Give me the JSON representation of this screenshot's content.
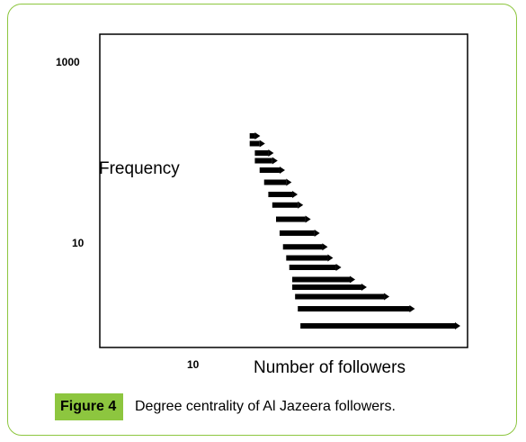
{
  "chart_data": {
    "type": "scatter",
    "xlabel": "Number of followers",
    "ylabel": "Frequency",
    "log_x": true,
    "log_y": true,
    "y_ticks": [
      "1000",
      "10"
    ],
    "x_ticks": [
      "10"
    ],
    "marker_color": "#000000",
    "rows": [
      {
        "y": 180,
        "x_from": 13,
        "x_to": 14
      },
      {
        "y": 150,
        "x_from": 13,
        "x_to": 15
      },
      {
        "y": 120,
        "x_from": 14,
        "x_to": 17
      },
      {
        "y": 100,
        "x_from": 14,
        "x_to": 18
      },
      {
        "y": 80,
        "x_from": 15,
        "x_to": 20
      },
      {
        "y": 60,
        "x_from": 16,
        "x_to": 22
      },
      {
        "y": 45,
        "x_from": 17,
        "x_to": 24
      },
      {
        "y": 35,
        "x_from": 18,
        "x_to": 26
      },
      {
        "y": 25,
        "x_from": 19,
        "x_to": 29
      },
      {
        "y": 18,
        "x_from": 20,
        "x_to": 33
      },
      {
        "y": 13,
        "x_from": 21,
        "x_to": 37
      },
      {
        "y": 10,
        "x_from": 22,
        "x_to": 40
      },
      {
        "y": 8,
        "x_from": 23,
        "x_to": 45
      },
      {
        "y": 6,
        "x_from": 24,
        "x_to": 55
      },
      {
        "y": 5,
        "x_from": 24,
        "x_to": 65
      },
      {
        "y": 4,
        "x_from": 25,
        "x_to": 90
      },
      {
        "y": 3,
        "x_from": 26,
        "x_to": 130
      },
      {
        "y": 2,
        "x_from": 27,
        "x_to": 280
      }
    ]
  },
  "caption": {
    "tag": "Figure 4",
    "text": "Degree centrality of Al Jazeera followers.",
    "tag_color": "#8dc63f"
  }
}
